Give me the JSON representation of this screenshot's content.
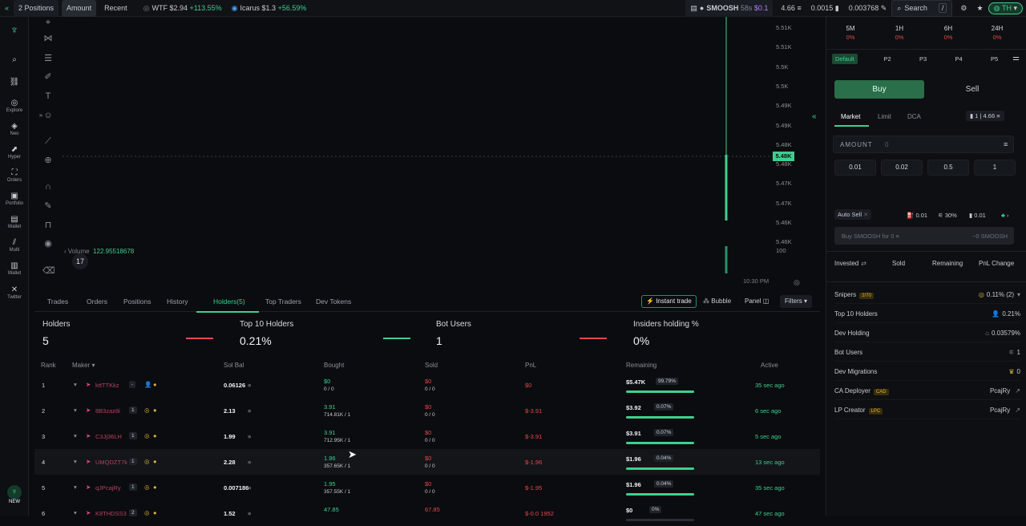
{
  "topbar": {
    "positions": "2 Positions",
    "amount": "Amount",
    "recent": "Recent",
    "ticker1": {
      "name": "WTF",
      "price": "$2.94",
      "change": "+113.55%"
    },
    "ticker2": {
      "name": "Icarus",
      "price": "$1.3",
      "change": "+56.59%"
    },
    "token": "SMOOSH",
    "age": "58s",
    "sol": "$0.1",
    "bal1": "4.66",
    "bal2": "0.0015",
    "bal3": "0.003768",
    "search": "Search",
    "search_key": "/",
    "user": "TH"
  },
  "rail": [
    "Explore",
    "Neo",
    "Hyper",
    "Orders",
    "Portfolio",
    "Wallet",
    "Multi",
    "Wallet",
    "Twitter"
  ],
  "chart": {
    "price_ticks": [
      "5.51K",
      "5.51K",
      "5.5K",
      "5.5K",
      "5.49K",
      "5.49K",
      "5.48K",
      "5.48K",
      "5.47K",
      "5.47K",
      "5.46K",
      "5.46K"
    ],
    "current_price": "5.48K",
    "volume_label": "Volume",
    "volume_value": "122.95518678",
    "volume_tick": "100",
    "time_label": "10:30 PM"
  },
  "tabs": [
    "Trades",
    "Orders",
    "Positions",
    "History",
    "Holders(5)",
    "Top Traders",
    "Dev Tokens"
  ],
  "actions": {
    "instant": "Instant trade",
    "bubble": "Bubble",
    "panel": "Panel",
    "filters": "Filters"
  },
  "stats": [
    {
      "label": "Holders",
      "value": "5"
    },
    {
      "label": "Top 10 Holders",
      "value": "0.21%"
    },
    {
      "label": "Bot Users",
      "value": "1"
    },
    {
      "label": "Insiders holding %",
      "value": "0%"
    }
  ],
  "columns": [
    "Rank",
    "Maker",
    "Sol Bal",
    "Bought",
    "Sold",
    "PnL",
    "Remaining",
    "Active"
  ],
  "holders": [
    {
      "rank": "1",
      "maker": "kttTTKkz",
      "count": "-",
      "solbal": "0.06126",
      "bought": "$0",
      "bought_sub": "0 / 0",
      "sold": "$0",
      "sold_sub": "0 / 0",
      "pnl": "$0",
      "remaining": "$5.47K",
      "pct": "99.79%",
      "fill": 0.998,
      "active": "35 sec ago"
    },
    {
      "rank": "2",
      "maker": "8B3zaz8i",
      "count": "1",
      "solbal": "2.13",
      "bought": "3.91",
      "bought_sub": "714.81K / 1",
      "sold": "$0",
      "sold_sub": "0 / 0",
      "pnl": "$-3.91",
      "remaining": "$3.92",
      "pct": "0.07%",
      "fill": 1.0,
      "active": "6 sec ago"
    },
    {
      "rank": "3",
      "maker": "C3Jj36LH",
      "count": "1",
      "solbal": "1.99",
      "bought": "3.91",
      "bought_sub": "712.95K / 1",
      "sold": "$0",
      "sold_sub": "0 / 0",
      "pnl": "$-3.91",
      "remaining": "$3.91",
      "pct": "0.07%",
      "fill": 1.0,
      "active": "5 sec ago"
    },
    {
      "rank": "4",
      "maker": "UMQDZT7k",
      "count": "1",
      "solbal": "2.28",
      "bought": "1.96",
      "bought_sub": "357.65K / 1",
      "sold": "$0",
      "sold_sub": "0 / 0",
      "pnl": "$-1.96",
      "remaining": "$1.96",
      "pct": "0.04%",
      "fill": 1.0,
      "active": "13 sec ago"
    },
    {
      "rank": "5",
      "maker": "qJPcajRy",
      "count": "1",
      "solbal": "0.007186",
      "bought": "1.95",
      "bought_sub": "357.55K / 1",
      "sold": "$0",
      "sold_sub": "0 / 0",
      "pnl": "$-1.95",
      "remaining": "$1.96",
      "pct": "0.04%",
      "fill": 1.0,
      "active": "35 sec ago"
    },
    {
      "rank": "6",
      "maker": "K8THDSS3",
      "count": "2",
      "solbal": "1.52",
      "bought": "47.85",
      "bought_sub": "",
      "sold": "67.85",
      "sold_sub": "",
      "pnl": "$-0.0 1952",
      "remaining": "$0",
      "pct": "0%",
      "fill": 0,
      "active": "47 sec ago"
    }
  ],
  "right": {
    "timeframes": [
      {
        "label": "5M",
        "val": "0%"
      },
      {
        "label": "1H",
        "val": "0%"
      },
      {
        "label": "6H",
        "val": "0%"
      },
      {
        "label": "24H",
        "val": "0%"
      }
    ],
    "presets": [
      "Default",
      "P2",
      "P3",
      "P4",
      "P5"
    ],
    "buy": "Buy",
    "sell": "Sell",
    "order_types": [
      "Market",
      "Limit",
      "DCA"
    ],
    "wallet_count": "1",
    "wallet_bal": "4.66",
    "amount_label": "AMOUNT",
    "amount_value": "0",
    "quick": [
      "0.01",
      "0.02",
      "0.5",
      "1"
    ],
    "autosell": "Auto Sell",
    "fee1": "0.01",
    "slip": "30%",
    "fee2": "0.01",
    "buy_btn": "Buy SMOOSH for 0",
    "buy_btn_right": "~0 SMOOSH",
    "pnl_cols": [
      "Invested",
      "Sold",
      "Remaining",
      "PnL Change"
    ],
    "info": [
      {
        "label": "Snipers",
        "tag": "2/70",
        "value": "0.11% (2)"
      },
      {
        "label": "Top 10 Holders",
        "tag": "",
        "value": "0.21%"
      },
      {
        "label": "Dev Holding",
        "tag": "",
        "value": "0.03579%"
      },
      {
        "label": "Bot Users",
        "tag": "",
        "value": "1"
      },
      {
        "label": "Dev Migrations",
        "tag": "",
        "value": "0"
      },
      {
        "label": "CA Deployer",
        "tag": "CAD",
        "value": "PcajRy"
      },
      {
        "label": "LP Creator",
        "tag": "LPC",
        "value": "PcajRy"
      }
    ]
  },
  "new_badge": "NEW"
}
